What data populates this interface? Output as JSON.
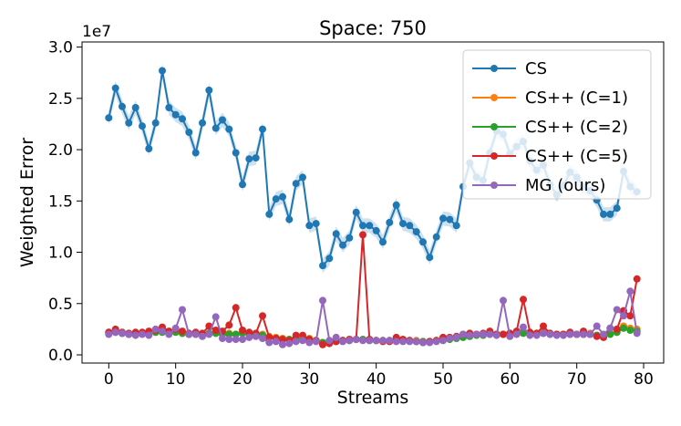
{
  "chart_data": {
    "type": "line",
    "title": "Space: 750",
    "xlabel": "Streams",
    "ylabel": "Weighted Error",
    "y_offset_label": "1e7",
    "xlim": [
      -4,
      83
    ],
    "ylim": [
      -0.08,
      3.05
    ],
    "xticks": [
      0,
      10,
      20,
      30,
      40,
      50,
      60,
      70,
      80
    ],
    "yticks": [
      0.0,
      0.5,
      1.0,
      1.5,
      2.0,
      2.5,
      3.0
    ],
    "ytick_labels": [
      "0.0",
      "0.5",
      "1.0",
      "1.5",
      "2.0",
      "2.5",
      "3.0"
    ],
    "legend_position": "upper right",
    "series": [
      {
        "name": "CS",
        "color": "#1f77b4",
        "band": true,
        "values": [
          2.31,
          2.6,
          2.42,
          2.26,
          2.41,
          2.23,
          2.01,
          2.26,
          2.77,
          2.41,
          2.34,
          2.3,
          2.17,
          1.97,
          2.26,
          2.58,
          2.21,
          2.29,
          2.2,
          1.97,
          1.66,
          1.91,
          1.92,
          2.2,
          1.37,
          1.52,
          1.54,
          1.32,
          1.67,
          1.73,
          1.26,
          1.28,
          0.87,
          0.94,
          1.18,
          1.07,
          1.14,
          1.39,
          1.26,
          1.26,
          1.21,
          1.1,
          1.29,
          1.46,
          1.28,
          1.26,
          1.2,
          1.1,
          0.95,
          1.15,
          1.33,
          1.32,
          1.26,
          1.64,
          1.87,
          1.73,
          1.7,
          1.97,
          2.18,
          2.15,
          1.96,
          2.03,
          2.08,
          1.89,
          1.8,
          1.85,
          1.66,
          1.56,
          1.65,
          1.78,
          1.73,
          1.64,
          1.6,
          1.51,
          1.37,
          1.37,
          1.43,
          1.79,
          1.64,
          1.59
        ]
      },
      {
        "name": "CS++ (C=1)",
        "color": "#ff7f0e",
        "band": false,
        "values": [
          0.22,
          0.23,
          0.21,
          0.2,
          0.21,
          0.21,
          0.22,
          0.22,
          0.24,
          0.22,
          0.23,
          0.21,
          0.2,
          0.21,
          0.2,
          0.21,
          0.22,
          0.2,
          0.21,
          0.2,
          0.22,
          0.21,
          0.2,
          0.2,
          0.18,
          0.17,
          0.16,
          0.15,
          0.16,
          0.15,
          0.16,
          0.14,
          0.12,
          0.13,
          0.14,
          0.14,
          0.15,
          0.15,
          0.15,
          0.15,
          0.14,
          0.14,
          0.14,
          0.15,
          0.15,
          0.14,
          0.14,
          0.13,
          0.13,
          0.14,
          0.15,
          0.16,
          0.17,
          0.18,
          0.19,
          0.2,
          0.2,
          0.21,
          0.2,
          0.2,
          0.21,
          0.21,
          0.22,
          0.2,
          0.21,
          0.22,
          0.21,
          0.2,
          0.2,
          0.21,
          0.2,
          0.2,
          0.21,
          0.19,
          0.18,
          0.21,
          0.22,
          0.28,
          0.26,
          0.25
        ]
      },
      {
        "name": "CS++ (C=2)",
        "color": "#2ca02c",
        "band": false,
        "values": [
          0.21,
          0.22,
          0.21,
          0.2,
          0.2,
          0.21,
          0.21,
          0.22,
          0.22,
          0.21,
          0.22,
          0.21,
          0.2,
          0.2,
          0.2,
          0.21,
          0.21,
          0.2,
          0.2,
          0.2,
          0.21,
          0.2,
          0.2,
          0.19,
          0.17,
          0.16,
          0.15,
          0.15,
          0.15,
          0.15,
          0.15,
          0.14,
          0.12,
          0.13,
          0.13,
          0.14,
          0.14,
          0.15,
          0.15,
          0.14,
          0.14,
          0.14,
          0.14,
          0.14,
          0.14,
          0.14,
          0.13,
          0.13,
          0.13,
          0.14,
          0.14,
          0.15,
          0.16,
          0.17,
          0.18,
          0.19,
          0.19,
          0.2,
          0.2,
          0.2,
          0.2,
          0.21,
          0.21,
          0.2,
          0.2,
          0.21,
          0.2,
          0.2,
          0.2,
          0.2,
          0.2,
          0.2,
          0.2,
          0.19,
          0.18,
          0.2,
          0.22,
          0.26,
          0.24,
          0.23
        ]
      },
      {
        "name": "CS++ (C=5)",
        "color": "#d62728",
        "band": false,
        "values": [
          0.22,
          0.25,
          0.22,
          0.21,
          0.22,
          0.22,
          0.23,
          0.24,
          0.27,
          0.23,
          0.25,
          0.23,
          0.21,
          0.22,
          0.21,
          0.28,
          0.24,
          0.23,
          0.29,
          0.46,
          0.24,
          0.22,
          0.21,
          0.38,
          0.17,
          0.16,
          0.15,
          0.14,
          0.19,
          0.19,
          0.15,
          0.14,
          0.1,
          0.11,
          0.13,
          0.14,
          0.15,
          0.15,
          1.17,
          0.15,
          0.14,
          0.13,
          0.13,
          0.17,
          0.15,
          0.14,
          0.13,
          0.12,
          0.13,
          0.14,
          0.17,
          0.17,
          0.18,
          0.2,
          0.21,
          0.2,
          0.21,
          0.23,
          0.2,
          0.2,
          0.21,
          0.23,
          0.54,
          0.22,
          0.21,
          0.28,
          0.21,
          0.2,
          0.2,
          0.22,
          0.2,
          0.23,
          0.2,
          0.18,
          0.17,
          0.26,
          0.25,
          0.43,
          0.38,
          0.74
        ]
      },
      {
        "name": "MG (ours)",
        "color": "#9467bd",
        "band": false,
        "values": [
          0.2,
          0.22,
          0.21,
          0.2,
          0.19,
          0.2,
          0.19,
          0.25,
          0.23,
          0.2,
          0.26,
          0.44,
          0.2,
          0.2,
          0.18,
          0.2,
          0.37,
          0.16,
          0.15,
          0.15,
          0.15,
          0.17,
          0.18,
          0.16,
          0.12,
          0.13,
          0.1,
          0.11,
          0.13,
          0.14,
          0.12,
          0.13,
          0.53,
          0.14,
          0.17,
          0.13,
          0.14,
          0.15,
          0.14,
          0.14,
          0.14,
          0.14,
          0.14,
          0.13,
          0.13,
          0.13,
          0.13,
          0.12,
          0.12,
          0.13,
          0.14,
          0.16,
          0.17,
          0.2,
          0.19,
          0.2,
          0.2,
          0.2,
          0.19,
          0.53,
          0.18,
          0.2,
          0.27,
          0.19,
          0.19,
          0.21,
          0.2,
          0.19,
          0.19,
          0.2,
          0.2,
          0.2,
          0.2,
          0.28,
          0.2,
          0.26,
          0.44,
          0.38,
          0.62,
          0.21
        ]
      }
    ]
  }
}
